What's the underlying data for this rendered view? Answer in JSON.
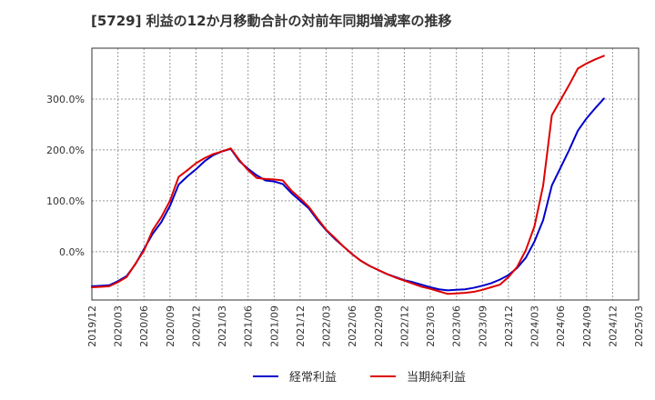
{
  "chart_data": {
    "type": "line",
    "title": "[5729]  利益の12か月移動合計の対前年同期増減率の推移",
    "xlabel": "",
    "ylabel": "",
    "ylim": [
      -95,
      400
    ],
    "y_ticks": [
      0,
      100,
      200,
      300
    ],
    "y_tick_labels": [
      "0.0%",
      "100.0%",
      "200.0%",
      "300.0%"
    ],
    "x_tick_labels": [
      "2019/12",
      "2020/03",
      "2020/06",
      "2020/09",
      "2020/12",
      "2021/03",
      "2021/06",
      "2021/09",
      "2021/12",
      "2022/03",
      "2022/06",
      "2022/09",
      "2022/12",
      "2023/03",
      "2023/06",
      "2023/09",
      "2023/12",
      "2024/03",
      "2024/06",
      "2024/09",
      "2024/12",
      "2025/03"
    ],
    "x_months_start": "2019/12",
    "grid": true,
    "legend_position": "bottom",
    "series": [
      {
        "name": "経常利益",
        "color": "#0000cc",
        "values": [
          -68,
          -67,
          -66,
          -58,
          -48,
          -25,
          5,
          35,
          58,
          90,
          132,
          148,
          162,
          178,
          190,
          197,
          202,
          178,
          163,
          150,
          140,
          138,
          133,
          115,
          100,
          85,
          62,
          42,
          25,
          10,
          -5,
          -18,
          -28,
          -36,
          -44,
          -50,
          -56,
          -60,
          -65,
          -70,
          -74,
          -76,
          -75,
          -74,
          -71,
          -67,
          -62,
          -55,
          -46,
          -32,
          -12,
          20,
          62,
          130,
          165,
          200,
          238,
          262,
          282,
          301
        ]
      },
      {
        "name": "当期純利益",
        "color": "#dd0000",
        "values": [
          -70,
          -69,
          -68,
          -60,
          -50,
          -24,
          2,
          42,
          68,
          100,
          147,
          160,
          174,
          184,
          192,
          197,
          203,
          180,
          160,
          145,
          143,
          142,
          140,
          120,
          105,
          88,
          65,
          43,
          27,
          10,
          -5,
          -18,
          -28,
          -36,
          -44,
          -51,
          -57,
          -63,
          -69,
          -73,
          -78,
          -83,
          -82,
          -81,
          -79,
          -75,
          -70,
          -65,
          -50,
          -30,
          3,
          50,
          130,
          268,
          298,
          328,
          360,
          370,
          378,
          385
        ]
      }
    ]
  }
}
